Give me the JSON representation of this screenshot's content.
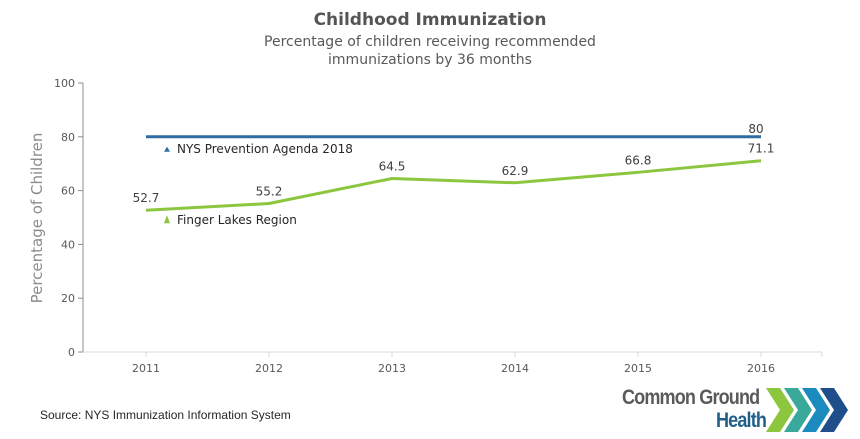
{
  "chart_data": {
    "type": "line",
    "title": "Childhood Immunization",
    "subtitle_lines": [
      "Percentage of children receiving recommended",
      "immunizations by 36 months"
    ],
    "xlabel": "",
    "ylabel": "Percentage of Children",
    "x": [
      "2011",
      "2012",
      "2013",
      "2014",
      "2015",
      "2016"
    ],
    "ylim": [
      0,
      100
    ],
    "yticks": [
      0,
      20,
      40,
      60,
      80,
      100
    ],
    "grid": false,
    "series": [
      {
        "name": "NYS Prevention Agenda 2018",
        "color": "#2e6da4",
        "values": [
          80,
          80,
          80,
          80,
          80,
          80
        ],
        "labeled_points": [
          {
            "index": 5,
            "label": "80"
          }
        ]
      },
      {
        "name": "Finger Lakes Region",
        "color": "#8cc63f",
        "values": [
          52.7,
          55.2,
          64.5,
          62.9,
          66.8,
          71.1
        ],
        "labeled_points": [
          {
            "index": 0,
            "label": "52.7"
          },
          {
            "index": 1,
            "label": "55.2"
          },
          {
            "index": 2,
            "label": "64.5"
          },
          {
            "index": 3,
            "label": "62.9"
          },
          {
            "index": 4,
            "label": "66.8"
          },
          {
            "index": 5,
            "label": "71.1"
          }
        ]
      }
    ]
  },
  "footer": {
    "source": "Source: NYS Immunization Information System"
  },
  "logo": {
    "line1": "Common Ground",
    "line2": "Health",
    "chevron_colors": [
      "#8cc63f",
      "#3aa89a",
      "#1b8bbf",
      "#1f4f8b"
    ]
  }
}
